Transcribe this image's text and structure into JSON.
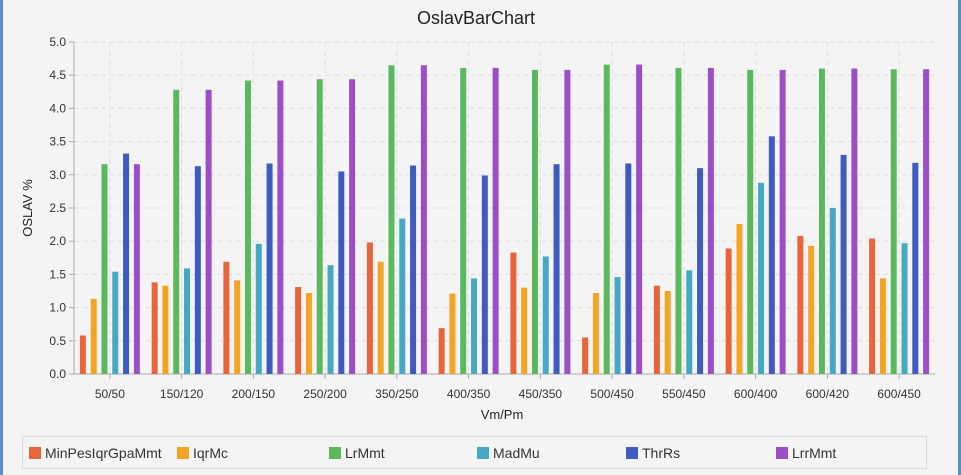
{
  "chart_data": {
    "type": "bar",
    "title": "OslavBarChart",
    "xlabel": "Vm/Pm",
    "ylabel": "OSLAV %",
    "ylim": [
      0,
      5.0
    ],
    "yticks": [
      "0.0",
      "0.5",
      "1.0",
      "1.5",
      "2.0",
      "2.5",
      "3.0",
      "3.5",
      "4.0",
      "4.5",
      "5.0"
    ],
    "grid": true,
    "legend_position": "bottom",
    "categories": [
      "50/50",
      "150/120",
      "200/150",
      "250/200",
      "350/250",
      "400/350",
      "450/350",
      "500/450",
      "550/450",
      "600/400",
      "600/420",
      "600/450"
    ],
    "series": [
      {
        "name": "MinPesIqrGpaMmt",
        "color": "#e8643a",
        "values": [
          0.58,
          1.38,
          1.69,
          1.31,
          1.98,
          0.69,
          1.83,
          0.55,
          1.33,
          1.89,
          2.08,
          2.04
        ]
      },
      {
        "name": "IqrMc",
        "color": "#f4a424",
        "values": [
          1.13,
          1.33,
          1.41,
          1.22,
          1.69,
          1.21,
          1.3,
          1.22,
          1.25,
          2.26,
          1.93,
          1.44
        ]
      },
      {
        "name": "LrMmt",
        "color": "#5cb85c",
        "values": [
          3.16,
          4.28,
          4.42,
          4.44,
          4.65,
          4.61,
          4.58,
          4.66,
          4.61,
          4.58,
          4.6,
          4.59
        ]
      },
      {
        "name": "MadMu",
        "color": "#47a8c4",
        "values": [
          1.54,
          1.59,
          1.96,
          1.64,
          2.34,
          1.44,
          1.77,
          1.46,
          1.56,
          2.88,
          2.5,
          1.97
        ]
      },
      {
        "name": "ThrRs",
        "color": "#3f5bbf",
        "values": [
          3.32,
          3.13,
          3.17,
          3.05,
          3.14,
          2.99,
          3.16,
          3.17,
          3.1,
          3.58,
          3.3,
          3.18
        ]
      },
      {
        "name": "LrrMmt",
        "color": "#9b4ec6",
        "values": [
          3.16,
          4.28,
          4.42,
          4.44,
          4.65,
          4.61,
          4.58,
          4.66,
          4.61,
          4.58,
          4.6,
          4.59
        ]
      }
    ]
  }
}
